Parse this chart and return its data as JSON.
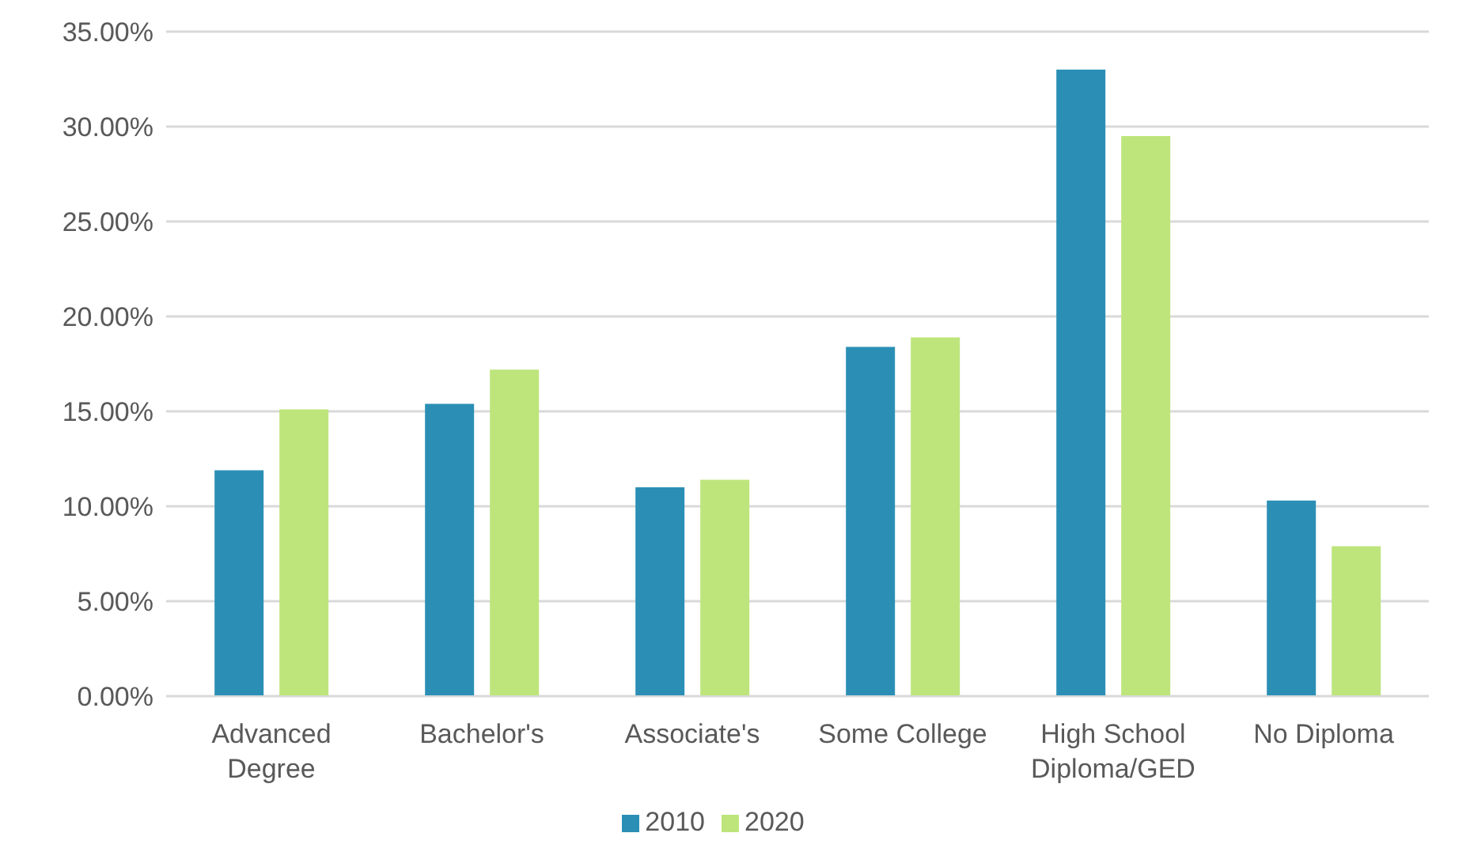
{
  "chart_data": {
    "type": "bar",
    "categories": [
      "Advanced Degree",
      "Bachelor's",
      "Associate's",
      "Some College",
      "High School Diploma/GED",
      "No Diploma"
    ],
    "series": [
      {
        "name": "2010",
        "color": "#2b8fb5",
        "values": [
          11.9,
          15.4,
          11.0,
          18.4,
          33.0,
          10.3
        ]
      },
      {
        "name": "2020",
        "color": "#bde57c",
        "values": [
          15.1,
          17.2,
          11.4,
          18.9,
          29.5,
          7.9
        ]
      }
    ],
    "ylim": [
      0,
      35
    ],
    "yticks": [
      {
        "value": 0,
        "label": "0.00%"
      },
      {
        "value": 5,
        "label": "5.00%"
      },
      {
        "value": 10,
        "label": "10.00%"
      },
      {
        "value": 15,
        "label": "15.00%"
      },
      {
        "value": 20,
        "label": "20.00%"
      },
      {
        "value": 25,
        "label": "25.00%"
      },
      {
        "value": 30,
        "label": "30.00%"
      },
      {
        "value": 35,
        "label": "35.00%"
      }
    ],
    "grid": "y",
    "legend": "bottom"
  }
}
